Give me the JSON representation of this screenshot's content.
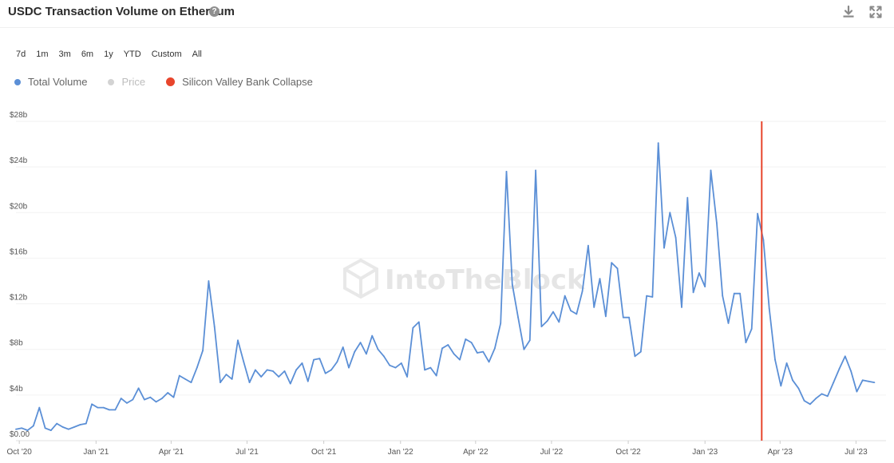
{
  "header": {
    "title": "USDC Transaction Volume on Ethereum",
    "help_icon": "question-circle-icon",
    "download_icon": "download-icon",
    "expand_icon": "expand-icon"
  },
  "ranges": [
    "7d",
    "1m",
    "3m",
    "6m",
    "1y",
    "YTD",
    "Custom",
    "All"
  ],
  "legend": [
    {
      "label": "Total Volume",
      "color": "#5b8fd6",
      "active": true
    },
    {
      "label": "Price",
      "color": "#d3d3d3",
      "active": false
    },
    {
      "label": "Silicon Valley Bank Collapse",
      "color": "#e8452c",
      "active": true
    }
  ],
  "watermark": "IntoTheBlock",
  "chart_data": {
    "type": "line",
    "title": "USDC Transaction Volume on Ethereum",
    "xlabel": "",
    "ylabel": "",
    "ylim": [
      0,
      28
    ],
    "y_unit": "billion USD",
    "y_ticks": [
      "$0.00",
      "$4b",
      "$8b",
      "$12b",
      "$16b",
      "$20b",
      "$24b",
      "$28b"
    ],
    "y_tick_values": [
      0,
      4,
      8,
      12,
      16,
      20,
      24,
      28
    ],
    "x_range": [
      "2020-09-27",
      "2023-08-06"
    ],
    "x_ticks": [
      {
        "label": "Oct '20",
        "date": "2020-10-01"
      },
      {
        "label": "Jan '21",
        "date": "2021-01-01"
      },
      {
        "label": "Apr '21",
        "date": "2021-04-01"
      },
      {
        "label": "Jul '21",
        "date": "2021-07-01"
      },
      {
        "label": "Oct '21",
        "date": "2021-10-01"
      },
      {
        "label": "Jan '22",
        "date": "2022-01-01"
      },
      {
        "label": "Apr '22",
        "date": "2022-04-01"
      },
      {
        "label": "Jul '22",
        "date": "2022-07-01"
      },
      {
        "label": "Oct '22",
        "date": "2022-10-01"
      },
      {
        "label": "Jan '23",
        "date": "2023-01-01"
      },
      {
        "label": "Apr '23",
        "date": "2023-04-01"
      },
      {
        "label": "Jul '23",
        "date": "2023-07-01"
      }
    ],
    "grid": true,
    "legend_position": "top-left",
    "annotations": [
      {
        "label": "Silicon Valley Bank Collapse",
        "date": "2023-03-10",
        "type": "vertical-line",
        "color": "#e8452c"
      }
    ],
    "series": [
      {
        "name": "Total Volume",
        "color": "#5b8fd6",
        "points": [
          [
            "2020-09-27",
            1.0
          ],
          [
            "2020-10-04",
            1.1
          ],
          [
            "2020-10-11",
            0.9
          ],
          [
            "2020-10-18",
            1.3
          ],
          [
            "2020-10-25",
            2.9
          ],
          [
            "2020-11-01",
            1.1
          ],
          [
            "2020-11-08",
            0.9
          ],
          [
            "2020-11-15",
            1.5
          ],
          [
            "2020-11-22",
            1.2
          ],
          [
            "2020-11-29",
            1.0
          ],
          [
            "2020-12-06",
            1.2
          ],
          [
            "2020-12-13",
            1.4
          ],
          [
            "2020-12-20",
            1.5
          ],
          [
            "2020-12-27",
            3.2
          ],
          [
            "2021-01-03",
            2.9
          ],
          [
            "2021-01-10",
            2.9
          ],
          [
            "2021-01-17",
            2.7
          ],
          [
            "2021-01-24",
            2.7
          ],
          [
            "2021-01-31",
            3.7
          ],
          [
            "2021-02-07",
            3.3
          ],
          [
            "2021-02-14",
            3.6
          ],
          [
            "2021-02-21",
            4.6
          ],
          [
            "2021-02-28",
            3.6
          ],
          [
            "2021-03-07",
            3.8
          ],
          [
            "2021-03-14",
            3.4
          ],
          [
            "2021-03-21",
            3.7
          ],
          [
            "2021-03-28",
            4.2
          ],
          [
            "2021-04-04",
            3.8
          ],
          [
            "2021-04-11",
            5.7
          ],
          [
            "2021-04-18",
            5.4
          ],
          [
            "2021-04-25",
            5.1
          ],
          [
            "2021-05-02",
            6.4
          ],
          [
            "2021-05-09",
            7.9
          ],
          [
            "2021-05-16",
            14.0
          ],
          [
            "2021-05-23",
            10.0
          ],
          [
            "2021-05-30",
            5.1
          ],
          [
            "2021-06-06",
            5.8
          ],
          [
            "2021-06-13",
            5.4
          ],
          [
            "2021-06-20",
            8.8
          ],
          [
            "2021-06-27",
            6.9
          ],
          [
            "2021-07-04",
            5.1
          ],
          [
            "2021-07-11",
            6.2
          ],
          [
            "2021-07-18",
            5.6
          ],
          [
            "2021-07-25",
            6.2
          ],
          [
            "2021-08-01",
            6.1
          ],
          [
            "2021-08-08",
            5.6
          ],
          [
            "2021-08-15",
            6.1
          ],
          [
            "2021-08-22",
            5.0
          ],
          [
            "2021-08-29",
            6.2
          ],
          [
            "2021-09-05",
            6.8
          ],
          [
            "2021-09-12",
            5.2
          ],
          [
            "2021-09-19",
            7.1
          ],
          [
            "2021-09-26",
            7.2
          ],
          [
            "2021-10-03",
            5.9
          ],
          [
            "2021-10-10",
            6.2
          ],
          [
            "2021-10-17",
            6.9
          ],
          [
            "2021-10-24",
            8.2
          ],
          [
            "2021-10-31",
            6.4
          ],
          [
            "2021-11-07",
            7.8
          ],
          [
            "2021-11-14",
            8.6
          ],
          [
            "2021-11-21",
            7.6
          ],
          [
            "2021-11-28",
            9.2
          ],
          [
            "2021-12-05",
            8.0
          ],
          [
            "2021-12-12",
            7.4
          ],
          [
            "2021-12-19",
            6.6
          ],
          [
            "2021-12-26",
            6.4
          ],
          [
            "2022-01-02",
            6.8
          ],
          [
            "2022-01-09",
            5.6
          ],
          [
            "2022-01-16",
            9.9
          ],
          [
            "2022-01-23",
            10.4
          ],
          [
            "2022-01-30",
            6.2
          ],
          [
            "2022-02-06",
            6.4
          ],
          [
            "2022-02-13",
            5.7
          ],
          [
            "2022-02-20",
            8.1
          ],
          [
            "2022-02-27",
            8.4
          ],
          [
            "2022-03-06",
            7.6
          ],
          [
            "2022-03-13",
            7.1
          ],
          [
            "2022-03-20",
            8.9
          ],
          [
            "2022-03-27",
            8.6
          ],
          [
            "2022-04-03",
            7.7
          ],
          [
            "2022-04-10",
            7.8
          ],
          [
            "2022-04-17",
            6.9
          ],
          [
            "2022-04-24",
            8.1
          ],
          [
            "2022-05-01",
            10.3
          ],
          [
            "2022-05-08",
            23.6
          ],
          [
            "2022-05-15",
            13.7
          ],
          [
            "2022-05-22",
            10.8
          ],
          [
            "2022-05-29",
            8.0
          ],
          [
            "2022-06-05",
            8.8
          ],
          [
            "2022-06-12",
            23.7
          ],
          [
            "2022-06-19",
            10.0
          ],
          [
            "2022-06-26",
            10.5
          ],
          [
            "2022-07-03",
            11.3
          ],
          [
            "2022-07-10",
            10.4
          ],
          [
            "2022-07-17",
            12.7
          ],
          [
            "2022-07-24",
            11.4
          ],
          [
            "2022-07-31",
            11.1
          ],
          [
            "2022-08-07",
            13.1
          ],
          [
            "2022-08-14",
            17.1
          ],
          [
            "2022-08-21",
            11.7
          ],
          [
            "2022-08-28",
            14.2
          ],
          [
            "2022-09-04",
            10.9
          ],
          [
            "2022-09-11",
            15.6
          ],
          [
            "2022-09-18",
            15.1
          ],
          [
            "2022-09-25",
            10.8
          ],
          [
            "2022-10-02",
            10.8
          ],
          [
            "2022-10-09",
            7.4
          ],
          [
            "2022-10-16",
            7.8
          ],
          [
            "2022-10-23",
            12.7
          ],
          [
            "2022-10-30",
            12.6
          ],
          [
            "2022-11-06",
            26.1
          ],
          [
            "2022-11-13",
            16.9
          ],
          [
            "2022-11-20",
            20.0
          ],
          [
            "2022-11-27",
            17.8
          ],
          [
            "2022-12-04",
            11.7
          ],
          [
            "2022-12-11",
            21.3
          ],
          [
            "2022-12-18",
            13.0
          ],
          [
            "2022-12-25",
            14.7
          ],
          [
            "2023-01-01",
            13.5
          ],
          [
            "2023-01-08",
            23.7
          ],
          [
            "2023-01-15",
            19.1
          ],
          [
            "2023-01-22",
            12.7
          ],
          [
            "2023-01-29",
            10.3
          ],
          [
            "2023-02-05",
            12.9
          ],
          [
            "2023-02-12",
            12.9
          ],
          [
            "2023-02-19",
            8.6
          ],
          [
            "2023-02-26",
            9.8
          ],
          [
            "2023-03-05",
            19.9
          ],
          [
            "2023-03-12",
            17.6
          ],
          [
            "2023-03-19",
            11.6
          ],
          [
            "2023-03-26",
            7.1
          ],
          [
            "2023-04-02",
            4.8
          ],
          [
            "2023-04-09",
            6.8
          ],
          [
            "2023-04-16",
            5.3
          ],
          [
            "2023-04-23",
            4.6
          ],
          [
            "2023-04-30",
            3.5
          ],
          [
            "2023-05-07",
            3.2
          ],
          [
            "2023-05-14",
            3.7
          ],
          [
            "2023-05-21",
            4.1
          ],
          [
            "2023-05-28",
            3.9
          ],
          [
            "2023-06-04",
            5.1
          ],
          [
            "2023-06-11",
            6.3
          ],
          [
            "2023-06-18",
            7.4
          ],
          [
            "2023-06-25",
            6.1
          ],
          [
            "2023-07-02",
            4.3
          ],
          [
            "2023-07-09",
            5.3
          ],
          [
            "2023-07-16",
            5.2
          ],
          [
            "2023-07-23",
            5.1
          ]
        ]
      }
    ]
  }
}
